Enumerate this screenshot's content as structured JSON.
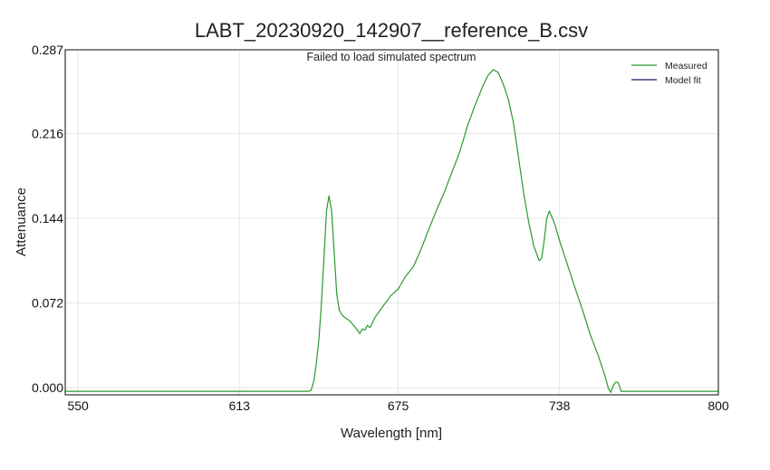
{
  "chart_data": {
    "type": "line",
    "title": "LABT_20230920_142907__reference_B.csv",
    "annotation": "Failed to load simulated spectrum",
    "xlabel": "Wavelength [nm]",
    "ylabel": "Attenuance",
    "xlim": [
      545,
      800
    ],
    "ylim": [
      -0.006,
      0.287
    ],
    "xticks": [
      "550",
      "613",
      "675",
      "738",
      "800"
    ],
    "xtick_values": [
      550,
      613,
      675,
      738,
      800
    ],
    "yticks": [
      "0.000",
      "0.072",
      "0.144",
      "0.216",
      "0.287"
    ],
    "ytick_values": [
      0.0,
      0.072,
      0.144,
      0.216,
      0.287
    ],
    "grid": true,
    "legend_position": "top-right",
    "series": [
      {
        "name": "Measured",
        "color": "#2a9a2a",
        "x": [
          545,
          640,
          641,
          642,
          643,
          644,
          645,
          646,
          647,
          648,
          649,
          650,
          651,
          652,
          653,
          654,
          656,
          658,
          660,
          661,
          662,
          663,
          664,
          666,
          668,
          670,
          672,
          675,
          678,
          681,
          684,
          687,
          690,
          693,
          696,
          699,
          702,
          705,
          708,
          710,
          712,
          714,
          716,
          718,
          720,
          722,
          724,
          726,
          728,
          730,
          731,
          732,
          733,
          734,
          736,
          738,
          741,
          744,
          747,
          750,
          753,
          755,
          756,
          757,
          758,
          759,
          760,
          761,
          762,
          800
        ],
        "y": [
          -0.003,
          -0.003,
          -0.002,
          0.005,
          0.02,
          0.04,
          0.07,
          0.11,
          0.15,
          0.163,
          0.15,
          0.115,
          0.08,
          0.066,
          0.062,
          0.06,
          0.057,
          0.052,
          0.046,
          0.05,
          0.049,
          0.053,
          0.051,
          0.06,
          0.066,
          0.072,
          0.078,
          0.084,
          0.095,
          0.103,
          0.118,
          0.135,
          0.151,
          0.166,
          0.183,
          0.2,
          0.222,
          0.24,
          0.256,
          0.265,
          0.27,
          0.268,
          0.258,
          0.245,
          0.225,
          0.195,
          0.165,
          0.14,
          0.12,
          0.108,
          0.11,
          0.125,
          0.144,
          0.15,
          0.14,
          0.125,
          0.105,
          0.085,
          0.066,
          0.045,
          0.028,
          0.015,
          0.008,
          0.0,
          -0.004,
          0.002,
          0.005,
          0.004,
          -0.003,
          -0.003
        ]
      },
      {
        "name": "Model fit",
        "color": "#1a1a5e",
        "x": [],
        "y": []
      }
    ]
  }
}
